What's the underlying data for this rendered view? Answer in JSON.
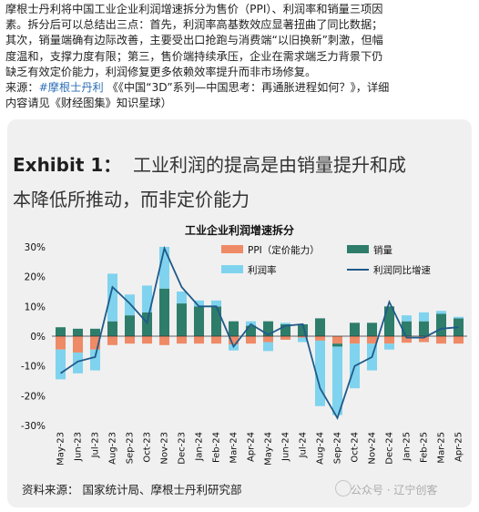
{
  "post": {
    "line1": "摩根士丹利将中国工业企业利润增速拆分为售价（PPI）、利润率和销量三项因",
    "line2": "素。拆分后可以总结出三点：首先，利润率高基数效应显著扭曲了同比数据；",
    "line3": "其次，销量端确有边际改善，主要受出口抢跑与消费端“以旧换新”刺激，但幅",
    "line4": "度温和，支撑力度有限；第三，售价端持续承压，企业在需求端乏力背景下仍",
    "line5": "缺乏有效定价能力，利润修复更多依赖效率提升而非市场修复。",
    "source_prefix": "来源：",
    "source_tag": "#摩根士丹利",
    "source_rest": "《《中国“3D”系列—中国思考：再通胀进程如何？》，详细",
    "line7": "内容请见《财经图集》知识星球）"
  },
  "exhibit": {
    "label": "Exhibit 1：",
    "title_part1": "工业利润的提高是由销量提升和成",
    "title_part2": "本降低所推动，而非定价能力"
  },
  "footer": {
    "source": "资料来源：   国家统计局、摩根士丹利研究部",
    "watermark": "公众号 · 辽宁创客"
  },
  "colors": {
    "ppi": "#ef8a67",
    "volume": "#2e7d6b",
    "margin": "#7fd3ee",
    "growth": "#1f5a8a",
    "card": "#f0f0f0"
  },
  "chart_data": {
    "type": "bar",
    "title": "工业企业利润增速拆分",
    "categories": [
      "May-23",
      "Jun-23",
      "Jul-23",
      "Aug-23",
      "Sep-23",
      "Oct-23",
      "Nov-23",
      "Dec-23",
      "Jan-24",
      "Feb-24",
      "Mar-24",
      "Apr-24",
      "May-24",
      "Jun-24",
      "Jul-24",
      "Aug-24",
      "Sep-24",
      "Oct-24",
      "Nov-24",
      "Dec-24",
      "Jan-25",
      "Feb-25",
      "Mar-25",
      "Apr-25"
    ],
    "tick_labels": [
      "May-23",
      "Jun-23",
      "Jul-23",
      "Aug-23",
      "Sep-23",
      "Oct-23",
      "Nov-23",
      "Dec-23",
      "Jan-24",
      "Feb-24",
      "Mar-24",
      "Apr-24",
      "May-24",
      "Jun-24",
      "Jul-24",
      "Aug-24",
      "Sep-24",
      "Oct-24",
      "Nov-24",
      "Dec-24",
      "Jan-25",
      "Feb-25",
      "Mar-25",
      "Apr-25"
    ],
    "ylim": [
      -30,
      30
    ],
    "yticks": [
      30,
      20,
      10,
      0,
      -10,
      -20,
      -30
    ],
    "ytick_labels": [
      "30%",
      "20%",
      "10%",
      "0%",
      "-10%",
      "-20%",
      "-30%"
    ],
    "legend": [
      "PPI（定价能力）",
      "销量",
      "利润率",
      "利润同比增速"
    ],
    "legend_position": "top",
    "series": [
      {
        "name": "PPI（定价能力）",
        "type": "bar",
        "values": [
          -4.5,
          -5.5,
          -4.5,
          -3,
          -2.5,
          -2.5,
          -3,
          -2.5,
          -2.5,
          -2.5,
          -2.8,
          -2.5,
          -2,
          -1.2,
          -0.5,
          -1.5,
          -2.5,
          -2.5,
          -2.5,
          -2.5,
          -2.2,
          -2,
          -2.5,
          -2.5
        ]
      },
      {
        "name": "销量",
        "type": "bar",
        "values": [
          3,
          2.5,
          2.5,
          5,
          7,
          8,
          16,
          11,
          10,
          10,
          5,
          3.5,
          5,
          4,
          4,
          6,
          -1,
          4.5,
          4.5,
          10,
          5,
          5,
          7.5,
          6
        ]
      },
      {
        "name": "利润率",
        "type": "bar",
        "values": [
          -10,
          -7,
          -7,
          16,
          7,
          9,
          14,
          4,
          2,
          2,
          -2,
          1.5,
          -3,
          0.5,
          -1.5,
          -22,
          -23,
          -15,
          -9,
          -2,
          2,
          3,
          1,
          0.5
        ]
      },
      {
        "name": "利润同比增速",
        "type": "line",
        "values": [
          -12.5,
          -8.5,
          -7,
          16.5,
          11,
          4.5,
          29.5,
          16.5,
          10,
          10,
          -3.5,
          4,
          0.5,
          3.5,
          4,
          -17.5,
          -27.5,
          -10,
          -7,
          11.5,
          -0.5,
          -0.5,
          2.5,
          3
        ]
      }
    ]
  }
}
